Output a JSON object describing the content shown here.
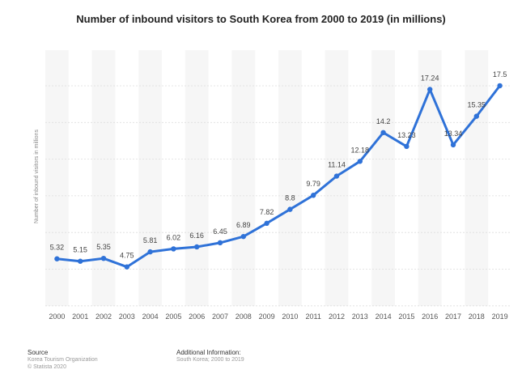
{
  "chart_data": {
    "type": "line",
    "title": "Number of inbound visitors to South Korea from 2000 to 2019 (in millions)",
    "xlabel": "",
    "ylabel": "Number of inbound visitors in millions",
    "categories": [
      "2000",
      "2001",
      "2002",
      "2003",
      "2004",
      "2005",
      "2006",
      "2007",
      "2008",
      "2009",
      "2010",
      "2011",
      "2012",
      "2013",
      "2014",
      "2015",
      "2016",
      "2017",
      "2018",
      "2019"
    ],
    "series": [
      {
        "values": [
          5.32,
          5.15,
          5.35,
          4.75,
          5.81,
          6.02,
          6.16,
          6.45,
          6.89,
          7.82,
          8.8,
          9.79,
          11.14,
          12.18,
          14.2,
          13.23,
          17.24,
          13.34,
          15.35,
          17.5
        ],
        "labels": [
          "5.32",
          "5.15",
          "5.35",
          "4.75",
          "5.81",
          "6.02",
          "6.16",
          "6.45",
          "6.89",
          "7.82",
          "8.8",
          "9.79",
          "11.14",
          "12.18",
          "14.2",
          "13.23",
          "17.24",
          "13.34",
          "15.35",
          "17.5"
        ]
      }
    ],
    "ylim": [
      2,
      20
    ],
    "grid": true,
    "line_color": "#2f72d8"
  },
  "footer": {
    "source_heading": "Source",
    "source_line1": "Korea Tourism Organization",
    "source_line2": "© Statista 2020",
    "info_heading": "Additional Information:",
    "info_line1": "South Korea; 2000 to 2019"
  }
}
